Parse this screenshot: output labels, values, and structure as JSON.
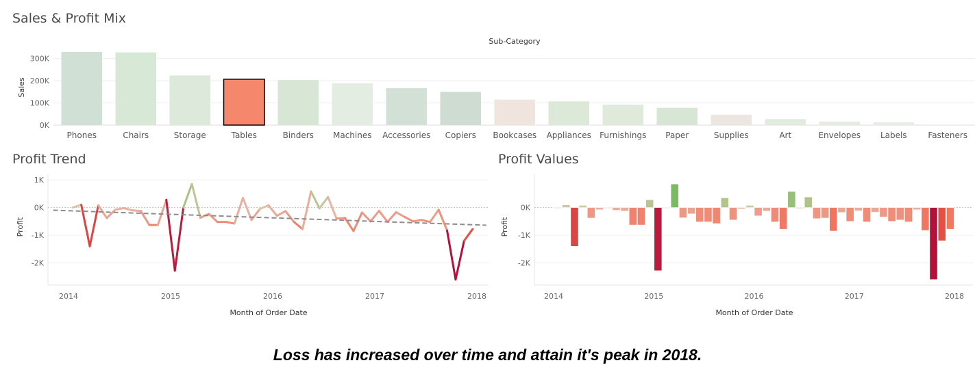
{
  "sales": {
    "title": "Sales & Profit Mix",
    "chart_data": {
      "type": "bar",
      "title": "Sales & Profit Mix",
      "header": "Sub-Category",
      "ylabel": "Sales",
      "ylim": [
        0,
        330000
      ],
      "yticks": [
        0,
        100000,
        200000,
        300000
      ],
      "ytick_labels": [
        "0K",
        "100K",
        "200K",
        "300K"
      ],
      "grid": true,
      "highlighted": "Tables",
      "categories": [
        "Phones",
        "Chairs",
        "Storage",
        "Tables",
        "Binders",
        "Machines",
        "Accessories",
        "Copiers",
        "Bookcases",
        "Appliances",
        "Furnishings",
        "Paper",
        "Supplies",
        "Art",
        "Envelopes",
        "Labels",
        "Fasteners"
      ],
      "values": [
        330000,
        328000,
        224000,
        207000,
        203000,
        189000,
        167000,
        150000,
        115000,
        107000,
        92000,
        78000,
        47000,
        27000,
        16000,
        12500,
        3000
      ],
      "colors": [
        "#d0e0d4",
        "#d8e8d6",
        "#dde9da",
        "#f4876c",
        "#d8e6d6",
        "#e3ede2",
        "#d3e0d6",
        "#cfdcd2",
        "#f0e4df",
        "#dce8d8",
        "#dfeadb",
        "#d8e6d6",
        "#ede5e0",
        "#e1ecdf",
        "#e4ebe1",
        "#e8ece6",
        "#f0f0f0"
      ]
    }
  },
  "trend": {
    "title": "Profit Trend",
    "chart_data": {
      "type": "line",
      "title": "Profit Trend",
      "xlabel": "Month of Order Date",
      "ylabel": "Profit",
      "x_start": "2014-01",
      "xticks": [
        "2014",
        "2015",
        "2016",
        "2017",
        "2018"
      ],
      "ylim": [
        -2800,
        1200
      ],
      "yticks": [
        -2000,
        -1000,
        0,
        1000
      ],
      "ytick_labels": [
        "-2K",
        "-1K",
        "0K",
        "1K"
      ],
      "trendline": true,
      "grid": true,
      "values": [
        0,
        100,
        -1400,
        80,
        -380,
        -80,
        -20,
        -100,
        -130,
        -630,
        -630,
        280,
        -2280,
        0,
        850,
        -370,
        -230,
        -520,
        -520,
        -580,
        350,
        -450,
        -50,
        80,
        -300,
        -130,
        -520,
        -780,
        580,
        -30,
        380,
        -400,
        -380,
        -850,
        -180,
        -500,
        -120,
        -520,
        -170,
        -340,
        -500,
        -450,
        -520,
        -80,
        -830,
        -2600,
        -1200,
        -780
      ]
    }
  },
  "values": {
    "title": "Profit Values",
    "chart_data": {
      "type": "bar",
      "title": "Profit Values",
      "xlabel": "Month of Order Date",
      "ylabel": "Profit",
      "x_start": "2014-01",
      "xticks": [
        "2014",
        "2015",
        "2016",
        "2017",
        "2018"
      ],
      "ylim": [
        -2800,
        1200
      ],
      "yticks": [
        -2000,
        -1000,
        0
      ],
      "ytick_labels": [
        "-2K",
        "-1K",
        "0K"
      ],
      "grid": true,
      "values": [
        0,
        100,
        -1400,
        80,
        -380,
        -80,
        -20,
        -100,
        -130,
        -630,
        -630,
        280,
        -2280,
        0,
        850,
        -370,
        -230,
        -520,
        -520,
        -580,
        350,
        -450,
        -50,
        80,
        -300,
        -130,
        -520,
        -780,
        580,
        -30,
        380,
        -400,
        -380,
        -850,
        -180,
        -500,
        -120,
        -520,
        -170,
        -340,
        -500,
        -450,
        -520,
        -80,
        -830,
        -2600,
        -1200,
        -780
      ]
    }
  },
  "caption": "Loss has increased over time and attain it's peak in 2018.",
  "colors": {
    "positive": "#7fbf6a",
    "negative": "#e8553f",
    "deep_negative": "#c0143c",
    "trendline": "#8c8c8c"
  }
}
